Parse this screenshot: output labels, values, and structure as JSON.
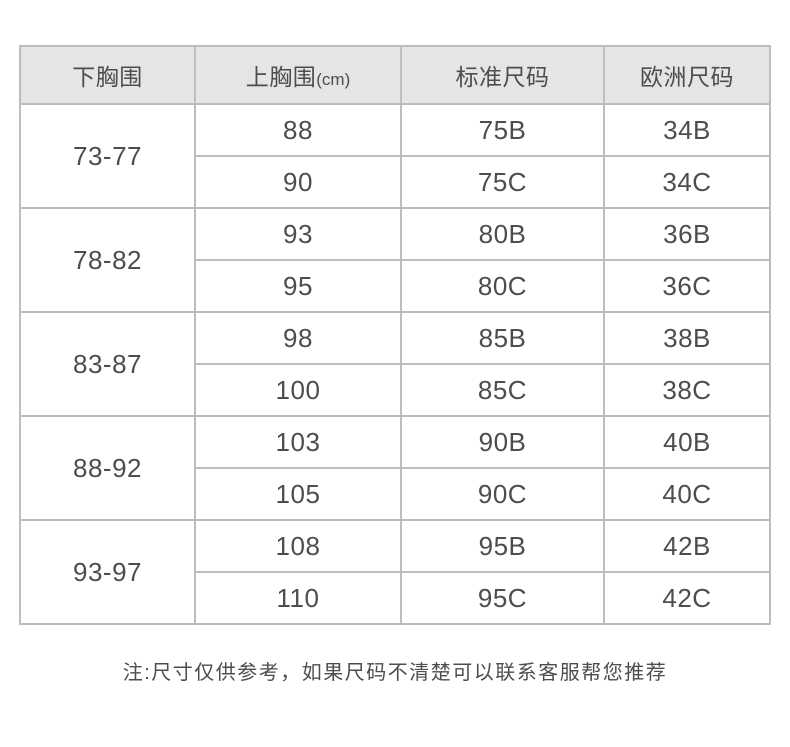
{
  "table": {
    "headers": {
      "underbust": {
        "label": "下胸围"
      },
      "bust": {
        "label": "上胸围",
        "unit": "(cm)"
      },
      "cn_size": {
        "label": "标准尺码"
      },
      "eu_size": {
        "label": "欧洲尺码"
      }
    },
    "groups": [
      {
        "underbust": "73-77",
        "rows": [
          [
            "88",
            "75B",
            "34B"
          ],
          [
            "90",
            "75C",
            "34C"
          ]
        ]
      },
      {
        "underbust": "78-82",
        "rows": [
          [
            "93",
            "80B",
            "36B"
          ],
          [
            "95",
            "80C",
            "36C"
          ]
        ]
      },
      {
        "underbust": "83-87",
        "rows": [
          [
            "98",
            "85B",
            "38B"
          ],
          [
            "100",
            "85C",
            "38C"
          ]
        ]
      },
      {
        "underbust": "88-92",
        "rows": [
          [
            "103",
            "90B",
            "40B"
          ],
          [
            "105",
            "90C",
            "40C"
          ]
        ]
      },
      {
        "underbust": "93-97",
        "rows": [
          [
            "108",
            "95B",
            "42B"
          ],
          [
            "110",
            "95C",
            "42C"
          ]
        ]
      }
    ]
  },
  "note": "注:尺寸仅供参考，如果尺码不清楚可以联系客服帮您推荐",
  "colors": {
    "header_bg": "#e5e5e5",
    "border": "#bdbdbd",
    "text": "#4d4d4d",
    "background": "#ffffff"
  }
}
